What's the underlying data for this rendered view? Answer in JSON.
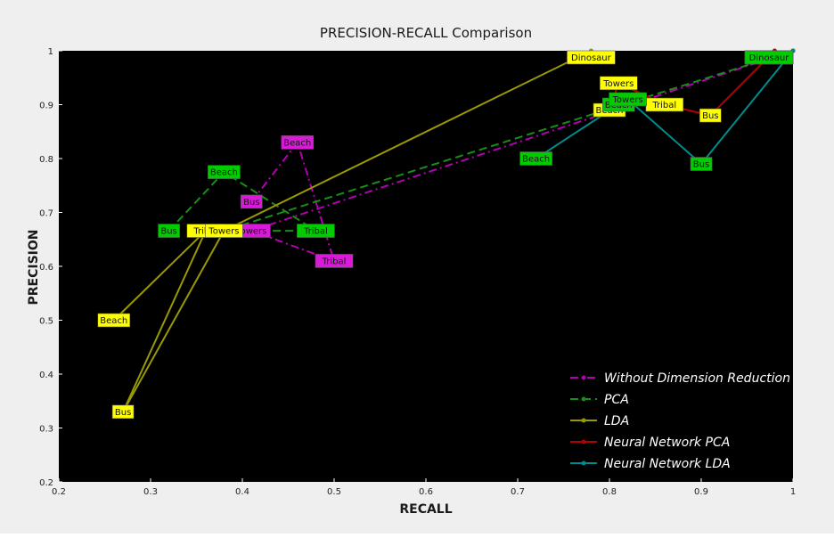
{
  "chart_data": {
    "type": "line",
    "title": "PRECISION-RECALL Comparison",
    "xlabel": "RECALL",
    "ylabel": "PRECISION",
    "xlim": [
      0.2,
      1
    ],
    "ylim": [
      0.2,
      1
    ],
    "x_ticks": [
      "0.2",
      "0.3",
      "0.4",
      "0.5",
      "0.6",
      "0.7",
      "0.8",
      "0.9",
      "1"
    ],
    "y_ticks": [
      "0.2",
      "0.3",
      "0.4",
      "0.5",
      "0.6",
      "0.7",
      "0.8",
      "0.9",
      "1"
    ],
    "grid": false,
    "background": "#000000",
    "legend_position": "bottom-right",
    "series": [
      {
        "name": "Without Dimension Reduction",
        "color": "#b300b3",
        "dash": "dashdot",
        "label_bg": "#d91ad9",
        "points": [
          {
            "label": "Bus",
            "x": 0.41,
            "y": 0.72
          },
          {
            "label": "Beach",
            "x": 0.46,
            "y": 0.83
          },
          {
            "label": "Tribal",
            "x": 0.5,
            "y": 0.61
          },
          {
            "label": "Towers",
            "x": 0.41,
            "y": 0.666
          },
          {
            "label": "Dinosaur",
            "x": 1.0,
            "y": 1.0
          }
        ]
      },
      {
        "name": "PCA",
        "color": "#1a8c1a",
        "dash": "dashed",
        "label_bg": "#00cc00",
        "points": [
          {
            "label": "Bus",
            "x": 0.32,
            "y": 0.666
          },
          {
            "label": "Beach",
            "x": 0.38,
            "y": 0.775
          },
          {
            "label": "Tribal",
            "x": 0.48,
            "y": 0.666
          },
          {
            "label": "Towers",
            "x": 0.38,
            "y": 0.666
          },
          {
            "label": "Dinosaur",
            "x": 1.0,
            "y": 1.0
          }
        ]
      },
      {
        "name": "LDA",
        "color": "#999900",
        "dash": "solid",
        "label_bg": "#ffff00",
        "points": [
          {
            "label": "Beach",
            "x": 0.26,
            "y": 0.5
          },
          {
            "label": "Tribal",
            "x": 0.36,
            "y": 0.666
          },
          {
            "label": "Bus",
            "x": 0.27,
            "y": 0.33
          },
          {
            "label": "Towers",
            "x": 0.38,
            "y": 0.666
          },
          {
            "label": "Dinosaur",
            "x": 0.78,
            "y": 1.0
          }
        ]
      },
      {
        "name": "Neural Network PCA",
        "color": "#b30000",
        "dash": "solid",
        "label_bg": "#ffff00",
        "points": [
          {
            "label": "Beach",
            "x": 0.8,
            "y": 0.89
          },
          {
            "label": "Towers",
            "x": 0.81,
            "y": 0.94
          },
          {
            "label": "Tribal",
            "x": 0.86,
            "y": 0.9
          },
          {
            "label": "Bus",
            "x": 0.91,
            "y": 0.88
          },
          {
            "label": "Dinosaur",
            "x": 0.98,
            "y": 1.0
          }
        ]
      },
      {
        "name": "Neural Network LDA",
        "color": "#008b8b",
        "dash": "solid",
        "label_bg": "#00cc00",
        "points": [
          {
            "label": "Beach",
            "x": 0.72,
            "y": 0.8
          },
          {
            "label": "Beach",
            "x": 0.81,
            "y": 0.9
          },
          {
            "label": "Towers",
            "x": 0.82,
            "y": 0.91
          },
          {
            "label": "Bus",
            "x": 0.9,
            "y": 0.79
          },
          {
            "label": "Dinosaur",
            "x": 1.0,
            "y": 1.0
          }
        ]
      }
    ]
  }
}
